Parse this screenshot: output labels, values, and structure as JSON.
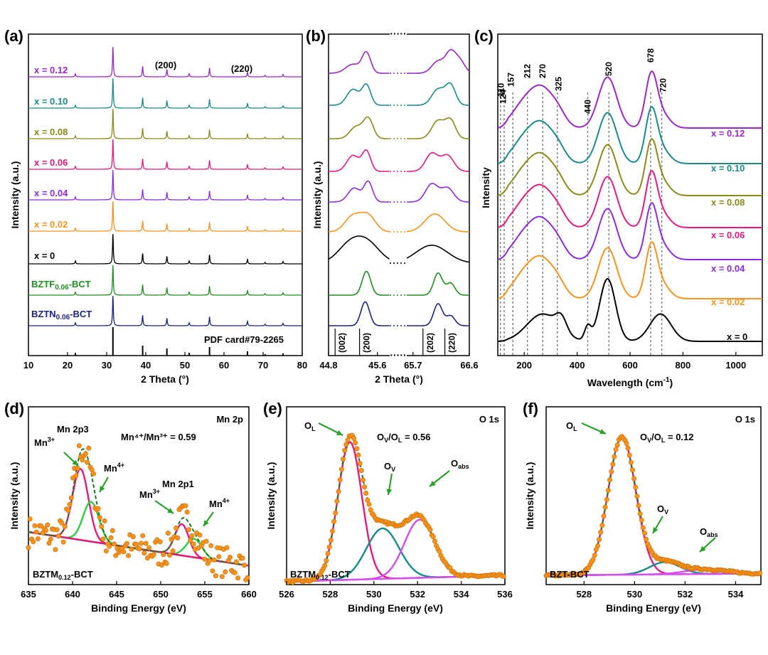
{
  "panels": {
    "a": {
      "label": "(a)",
      "xlabel": "2 Theta (°)",
      "ylabel": "Intensity (a.u.)",
      "xticks": [
        "10",
        "20",
        "30",
        "40",
        "50",
        "60",
        "70",
        "80"
      ],
      "annotations": [
        "(200)",
        "(220)"
      ],
      "pdf": "PDF card#79-2265"
    },
    "b": {
      "label": "(b)",
      "xlabel": "2 Theta (°)",
      "ylabel": "Intensity (a.u.)",
      "xticks": [
        "44.8",
        "45.6",
        "65.7",
        "66.6"
      ],
      "hkl": [
        "(002)",
        "(200)",
        "(202)",
        "(220)"
      ]
    },
    "c": {
      "label": "(c)",
      "xlabel": "Wavelength (cm",
      "xlabel_sup": "-1",
      "xlabel_end": ")",
      "ylabel": "Intensity",
      "xticks": [
        "200",
        "400",
        "600",
        "800",
        "1000"
      ],
      "peaks": [
        "110",
        "124",
        "157",
        "212",
        "270",
        "325",
        "440",
        "520",
        "678",
        "720"
      ]
    },
    "d": {
      "label": "(d)",
      "title": "Mn 2p",
      "ratio": "Mn⁴⁺/Mn³⁺ = 0.59",
      "xlabel": "Binding Energy (eV)",
      "ylabel": "Intensity (a.u.)",
      "xticks": [
        "635",
        "640",
        "645",
        "650",
        "655",
        "660"
      ],
      "texts": [
        "Mn 2p3",
        "Mn 2p1"
      ],
      "ions": [
        "Mn",
        "3+",
        "4+"
      ],
      "sample": "BZTM",
      "sample_sub": "0.12",
      "sample_end": "-BCT"
    },
    "e": {
      "label": "(e)",
      "title": "O 1s",
      "ratio": "/O",
      "ratio_value": " = 0.56",
      "xlabel": "Binding Energy (eV)",
      "ylabel": "Intensity (a.u.)",
      "xticks": [
        "526",
        "528",
        "530",
        "532",
        "534",
        "536"
      ],
      "o": "O",
      "subs": [
        "L",
        "V",
        "abs"
      ],
      "sample": "BZTM",
      "sample_sub": "0.12",
      "sample_end": "-BCT"
    },
    "f": {
      "label": "(f)",
      "title": "O 1s",
      "ratio": "/O",
      "ratio_value": " = 0.12",
      "xlabel": "Binding Energy (eV)",
      "ylabel": "Intensity (a.u.)",
      "xticks": [
        "528",
        "530",
        "532",
        "534"
      ],
      "o": "O",
      "subs": [
        "L",
        "V",
        "abs"
      ],
      "sample": "BZT-BCT"
    }
  },
  "colors": {
    "x012": "#9b27c9",
    "x010": "#1a8a8a",
    "x008": "#8a8a1a",
    "x006": "#e81a7c",
    "x004": "#8b2be2",
    "x002": "#f7931e",
    "x0": "#000000",
    "bztf": "#1f8f1f",
    "bztn": "#1a237e",
    "orange": "#f7941d",
    "green_fit": "#2ecc40",
    "pink": "#e6197a",
    "magenta": "#d64bf0",
    "teal": "#138a87",
    "arrow": "#2ca02c"
  },
  "chart_data": [
    {
      "type": "line",
      "panel": "a",
      "xlim": [
        10,
        80
      ],
      "series": [
        {
          "name": "x = 0.12",
          "color": "#9b27c9"
        },
        {
          "name": "x = 0.10",
          "color": "#1a8a8a"
        },
        {
          "name": "x = 0.08",
          "color": "#8a8a1a"
        },
        {
          "name": "x = 0.06",
          "color": "#e81a7c"
        },
        {
          "name": "x = 0.04",
          "color": "#8b2be2"
        },
        {
          "name": "x = 0.02",
          "color": "#f7931e"
        },
        {
          "name": "x = 0",
          "color": "#000000"
        },
        {
          "name": "BZTF0.06-BCT",
          "color": "#1f8f1f"
        },
        {
          "name": "BZTN0.06-BCT",
          "color": "#1a237e"
        }
      ],
      "peak_positions": [
        22.0,
        31.6,
        39.2,
        45.4,
        51.1,
        56.3,
        66.0,
        70.5,
        75.1
      ],
      "peak_heights": [
        0.1,
        1.0,
        0.35,
        0.25,
        0.1,
        0.3,
        0.15,
        0.05,
        0.08
      ]
    },
    {
      "type": "line",
      "panel": "b",
      "x_segments": [
        [
          44.8,
          45.8
        ],
        [
          65.6,
          66.6
        ]
      ],
      "series": [
        "x = 0.12",
        "x = 0.10",
        "x = 0.08",
        "x = 0.06",
        "x = 0.04",
        "x = 0.02",
        "x = 0",
        "BZTF0.06-BCT",
        "BZTN0.06-BCT"
      ]
    },
    {
      "type": "line",
      "panel": "c",
      "xlim": [
        100,
        1100
      ],
      "series": [
        "x = 0.12",
        "x = 0.10",
        "x = 0.08",
        "x = 0.06",
        "x = 0.04",
        "x = 0.02",
        "x = 0"
      ],
      "peaks": [
        110,
        124,
        157,
        212,
        270,
        325,
        440,
        520,
        678,
        720
      ]
    },
    {
      "type": "scatter",
      "panel": "d",
      "xlim": [
        635,
        660
      ],
      "components": [
        {
          "name": "Mn3+ (2p3/2)",
          "center": 640.9
        },
        {
          "name": "Mn4+ (2p3/2)",
          "center": 642.1
        },
        {
          "name": "Mn3+ (2p1/2)",
          "center": 652.4
        },
        {
          "name": "Mn4+ (2p1/2)",
          "center": 653.6
        }
      ],
      "ratio": 0.59
    },
    {
      "type": "scatter",
      "panel": "e",
      "xlim": [
        526,
        536
      ],
      "components": [
        {
          "name": "OL",
          "center": 528.9
        },
        {
          "name": "OV",
          "center": 530.4
        },
        {
          "name": "Oabs",
          "center": 532.1
        }
      ],
      "ratio": 0.56
    },
    {
      "type": "scatter",
      "panel": "f",
      "xlim": [
        526.5,
        535
      ],
      "components": [
        {
          "name": "OL",
          "center": 529.5
        },
        {
          "name": "OV",
          "center": 531.2
        },
        {
          "name": "Oabs",
          "center": 532.8
        }
      ],
      "ratio": 0.12
    }
  ]
}
